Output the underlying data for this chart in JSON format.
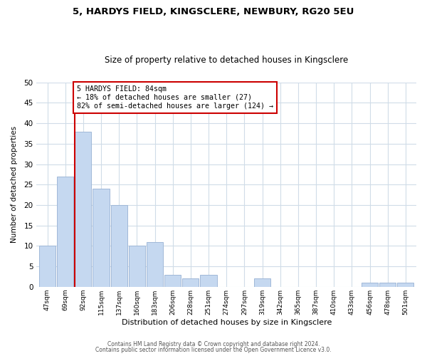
{
  "title1": "5, HARDYS FIELD, KINGSCLERE, NEWBURY, RG20 5EU",
  "title2": "Size of property relative to detached houses in Kingsclere",
  "xlabel": "Distribution of detached houses by size in Kingsclere",
  "ylabel": "Number of detached properties",
  "bin_labels": [
    "47sqm",
    "69sqm",
    "92sqm",
    "115sqm",
    "137sqm",
    "160sqm",
    "183sqm",
    "206sqm",
    "228sqm",
    "251sqm",
    "274sqm",
    "297sqm",
    "319sqm",
    "342sqm",
    "365sqm",
    "387sqm",
    "410sqm",
    "433sqm",
    "456sqm",
    "478sqm",
    "501sqm"
  ],
  "bar_heights": [
    10,
    27,
    38,
    24,
    20,
    10,
    11,
    3,
    2,
    3,
    0,
    0,
    2,
    0,
    0,
    0,
    0,
    0,
    1,
    1,
    1
  ],
  "bar_color": "#c5d8f0",
  "bar_edge_color": "#a0b8d8",
  "marker_line_color": "#cc0000",
  "annotation_line1": "5 HARDYS FIELD: 84sqm",
  "annotation_line2": "← 18% of detached houses are smaller (27)",
  "annotation_line3": "82% of semi-detached houses are larger (124) →",
  "annotation_box_edge_color": "#cc0000",
  "ylim": [
    0,
    50
  ],
  "yticks": [
    0,
    5,
    10,
    15,
    20,
    25,
    30,
    35,
    40,
    45,
    50
  ],
  "footer1": "Contains HM Land Registry data © Crown copyright and database right 2024.",
  "footer2": "Contains public sector information licensed under the Open Government Licence v3.0.",
  "bg_color": "#ffffff",
  "grid_color": "#d0dce8"
}
